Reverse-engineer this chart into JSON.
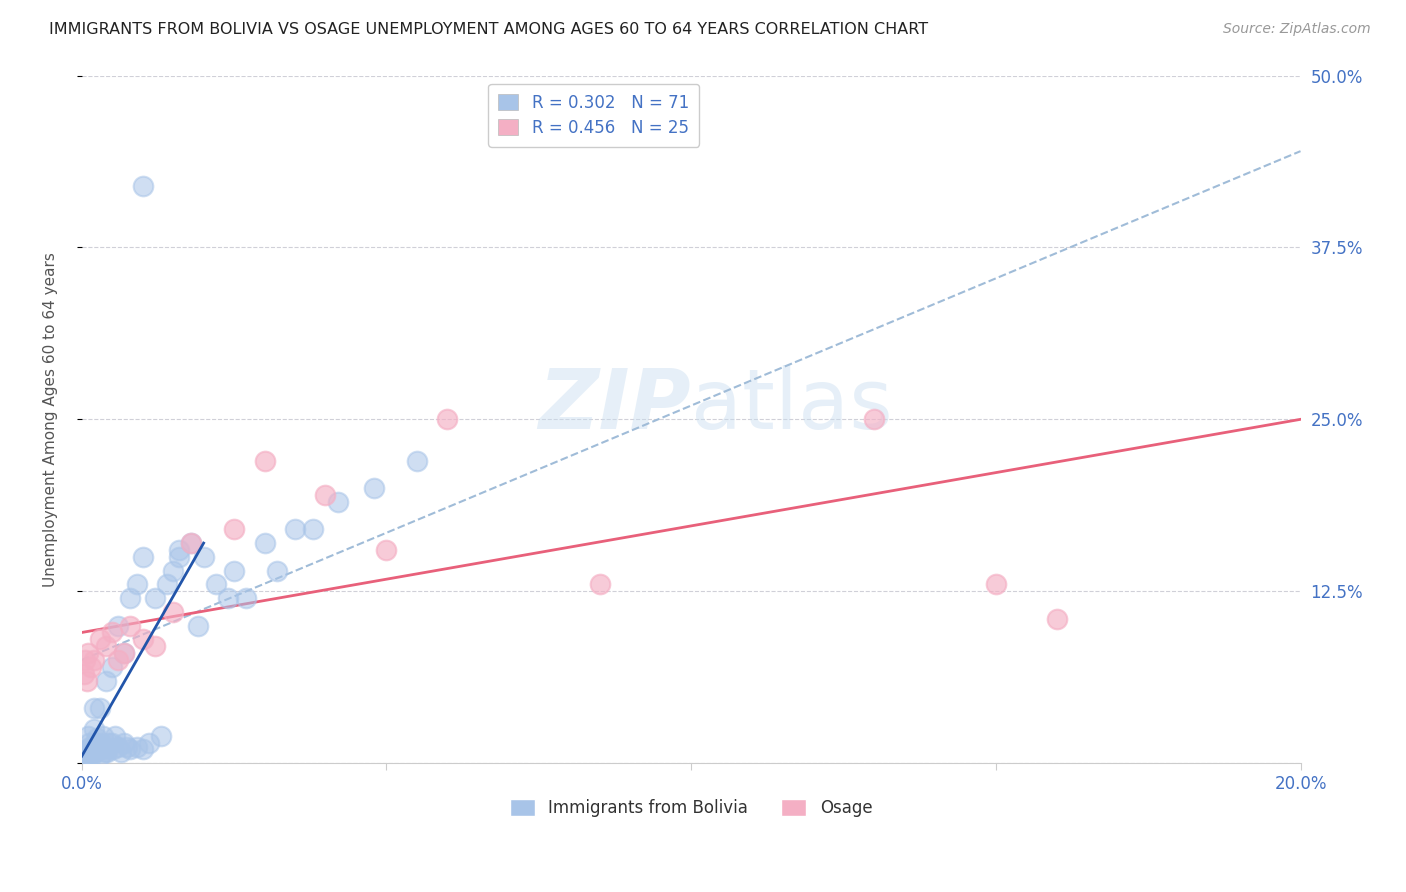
{
  "title": "IMMIGRANTS FROM BOLIVIA VS OSAGE UNEMPLOYMENT AMONG AGES 60 TO 64 YEARS CORRELATION CHART",
  "source": "Source: ZipAtlas.com",
  "ylabel": "Unemployment Among Ages 60 to 64 years",
  "xlim": [
    0.0,
    0.2
  ],
  "ylim": [
    0.0,
    0.5
  ],
  "yticks_right": [
    0.0,
    0.125,
    0.25,
    0.375,
    0.5
  ],
  "yticklabels_right": [
    "",
    "12.5%",
    "25.0%",
    "37.5%",
    "50.0%"
  ],
  "blue_color": "#a8c4e8",
  "pink_color": "#f4afc4",
  "blue_line_color": "#8ab0d8",
  "pink_line_color": "#e8607a",
  "text_blue": "#4472c4",
  "watermark": "ZIPatlas",
  "blue_scatter_x": [
    0.0002,
    0.0003,
    0.0004,
    0.0005,
    0.0006,
    0.0007,
    0.0008,
    0.0009,
    0.001,
    0.001,
    0.0012,
    0.0013,
    0.0014,
    0.0015,
    0.0016,
    0.0017,
    0.002,
    0.002,
    0.002,
    0.0022,
    0.0025,
    0.0028,
    0.003,
    0.003,
    0.003,
    0.0032,
    0.0035,
    0.0038,
    0.004,
    0.004,
    0.0042,
    0.0045,
    0.005,
    0.005,
    0.0052,
    0.0055,
    0.006,
    0.006,
    0.0065,
    0.007,
    0.007,
    0.0075,
    0.008,
    0.008,
    0.009,
    0.009,
    0.01,
    0.01,
    0.011,
    0.012,
    0.013,
    0.014,
    0.015,
    0.016,
    0.018,
    0.019,
    0.02,
    0.022,
    0.024,
    0.025,
    0.027,
    0.03,
    0.032,
    0.035,
    0.038,
    0.042,
    0.048,
    0.055,
    0.01,
    0.016
  ],
  "blue_scatter_y": [
    0.005,
    0.005,
    0.008,
    0.003,
    0.006,
    0.004,
    0.007,
    0.003,
    0.01,
    0.02,
    0.015,
    0.008,
    0.012,
    0.006,
    0.01,
    0.005,
    0.025,
    0.008,
    0.04,
    0.015,
    0.018,
    0.01,
    0.005,
    0.01,
    0.04,
    0.015,
    0.02,
    0.008,
    0.01,
    0.06,
    0.008,
    0.015,
    0.015,
    0.07,
    0.01,
    0.02,
    0.012,
    0.1,
    0.008,
    0.015,
    0.08,
    0.012,
    0.01,
    0.12,
    0.012,
    0.13,
    0.01,
    0.15,
    0.015,
    0.12,
    0.02,
    0.13,
    0.14,
    0.15,
    0.16,
    0.1,
    0.15,
    0.13,
    0.12,
    0.14,
    0.12,
    0.16,
    0.14,
    0.17,
    0.17,
    0.19,
    0.2,
    0.22,
    0.42,
    0.155
  ],
  "pink_scatter_x": [
    0.0003,
    0.0005,
    0.0008,
    0.001,
    0.0015,
    0.002,
    0.003,
    0.004,
    0.005,
    0.006,
    0.007,
    0.008,
    0.01,
    0.012,
    0.015,
    0.018,
    0.025,
    0.03,
    0.04,
    0.05,
    0.06,
    0.085,
    0.13,
    0.15,
    0.16
  ],
  "pink_scatter_y": [
    0.065,
    0.075,
    0.06,
    0.08,
    0.07,
    0.075,
    0.09,
    0.085,
    0.095,
    0.075,
    0.08,
    0.1,
    0.09,
    0.085,
    0.11,
    0.16,
    0.17,
    0.22,
    0.195,
    0.155,
    0.25,
    0.13,
    0.25,
    0.13,
    0.105
  ],
  "blue_line_x": [
    0.0,
    0.2
  ],
  "blue_line_y": [
    0.075,
    0.445
  ],
  "pink_line_x": [
    0.0,
    0.2
  ],
  "pink_line_y": [
    0.095,
    0.25
  ],
  "blue_solid_line_x": [
    0.0,
    0.02
  ],
  "blue_solid_line_y": [
    0.005,
    0.16
  ]
}
